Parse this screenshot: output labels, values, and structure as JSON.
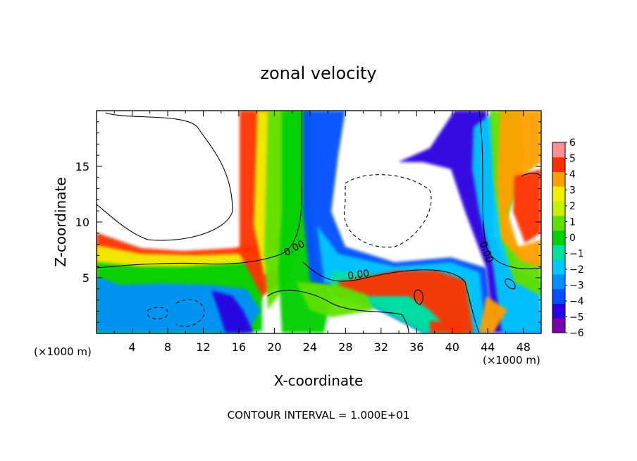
{
  "chart_data": {
    "type": "heatmap",
    "title": "zonal velocity",
    "xlabel": "X-coordinate",
    "ylabel": "Z-coordinate",
    "x_unit_left": "(×1000 m)",
    "x_unit_right": "(×1000 m)",
    "footer": "CONTOUR INTERVAL = 1.000E+01",
    "xlim": [
      0,
      50
    ],
    "ylim": [
      0,
      20
    ],
    "x_ticks": [
      4,
      8,
      12,
      16,
      20,
      24,
      28,
      32,
      36,
      40,
      44,
      48
    ],
    "y_ticks": [
      5,
      10,
      15
    ],
    "colorbar": {
      "levels": [
        -6,
        -5,
        -4,
        -3,
        -2,
        -1,
        0,
        1,
        2,
        3,
        4,
        5,
        6
      ],
      "colors": [
        "#7a00a8",
        "#2b00e0",
        "#0050ff",
        "#0090ff",
        "#00c8ff",
        "#00e0a0",
        "#00d000",
        "#60e000",
        "#c8f000",
        "#f0f000",
        "#ffa000",
        "#ff3000",
        "#ff9090"
      ]
    },
    "contour_labels": [
      {
        "text": "0.00",
        "x": 22.4,
        "y": 7.4,
        "angle": -28
      },
      {
        "text": "0.00",
        "x": 29.5,
        "y": 5.0,
        "angle": -8
      },
      {
        "text": "0.00",
        "x": 43.5,
        "y": 7.2,
        "angle": 70
      }
    ]
  }
}
